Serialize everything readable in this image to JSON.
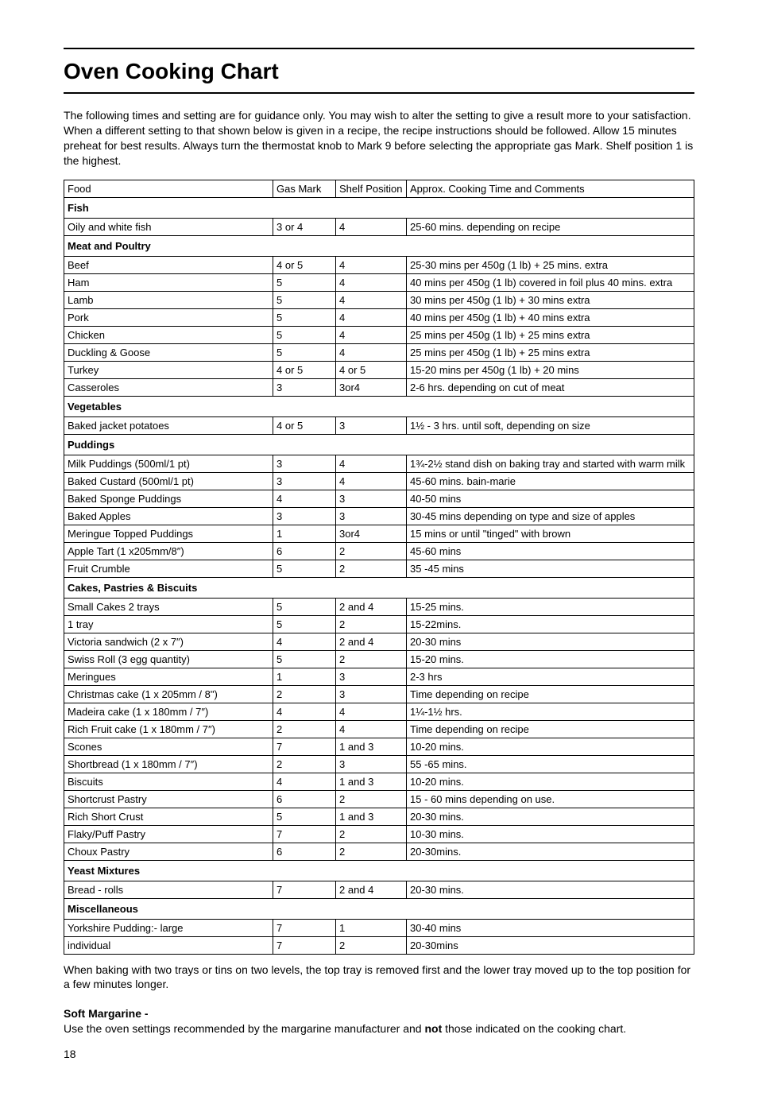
{
  "title": "Oven Cooking Chart",
  "intro": "The following times and setting are for guidance only. You may wish to alter the setting to give a result more to your satisfaction. When a different setting to that shown below is given in a recipe, the recipe instructions should be followed. Allow 15 minutes preheat for best results. Always turn the thermostat knob to Mark 9 before selecting the appropriate gas Mark. Shelf position 1 is the highest.",
  "columns": {
    "food": "Food",
    "gas": "Gas Mark",
    "shelf": "Shelf Position",
    "comments": "Approx. Cooking Time and Comments"
  },
  "sections": [
    {
      "header": "Fish",
      "rows": [
        {
          "food": "Oily and white fish",
          "gas": "3 or 4",
          "shelf": "4",
          "comments": "25-60 mins. depending on recipe"
        }
      ]
    },
    {
      "header": "Meat and Poultry",
      "rows": [
        {
          "food": "Beef",
          "gas": "4 or 5",
          "shelf": "4",
          "comments": "25-30 mins per 450g (1 lb) + 25 mins. extra"
        },
        {
          "food": "Ham",
          "gas": "5",
          "shelf": "4",
          "comments": "40 mins per 450g (1 lb) covered in foil plus 40 mins. extra"
        },
        {
          "food": "Lamb",
          "gas": "5",
          "shelf": "4",
          "comments": "30 mins per 450g (1 lb) + 30 mins extra"
        },
        {
          "food": "Pork",
          "gas": "5",
          "shelf": "4",
          "comments": "40 mins per 450g (1 lb) + 40 mins extra"
        },
        {
          "food": "Chicken",
          "gas": "5",
          "shelf": "4",
          "comments": "25 mins per 450g (1 lb) + 25 mins extra"
        },
        {
          "food": "Duckling & Goose",
          "gas": "5",
          "shelf": "4",
          "comments": "25 mins per 450g (1 lb) + 25 mins extra"
        },
        {
          "food": "Turkey",
          "gas": "4 or 5",
          "shelf": "4 or 5",
          "comments": "15-20 mins per 450g (1 lb) + 20 mins"
        },
        {
          "food": "Casseroles",
          "gas": "3",
          "shelf": "3or4",
          "comments": "2-6 hrs. depending on cut of meat"
        }
      ]
    },
    {
      "header": "Vegetables",
      "rows": [
        {
          "food": "Baked jacket potatoes",
          "gas": "4 or 5",
          "shelf": "3",
          "comments": "1½ - 3 hrs. until soft, depending on size"
        }
      ]
    },
    {
      "header": "Puddings",
      "rows": [
        {
          "food": "Milk Puddings (500ml/1 pt)",
          "gas": "3",
          "shelf": "4",
          "comments": "1¾-2½ stand dish on baking tray and started with warm milk"
        },
        {
          "food": "Baked Custard (500ml/1 pt)",
          "gas": "3",
          "shelf": "4",
          "comments": "45-60 mins. bain-marie"
        },
        {
          "food": "Baked Sponge Puddings",
          "gas": "4",
          "shelf": "3",
          "comments": "40-50 mins"
        },
        {
          "food": "Baked Apples",
          "gas": "3",
          "shelf": "3",
          "comments": "30-45 mins depending on type and size of apples"
        },
        {
          "food": "Meringue Topped Puddings",
          "gas": "1",
          "shelf": "3or4",
          "comments": "15 mins or until \"tinged\" with brown"
        },
        {
          "food": "Apple Tart (1 x205mm/8″)",
          "gas": "6",
          "shelf": "2",
          "comments": "45-60 mins"
        },
        {
          "food": "Fruit Crumble",
          "gas": "5",
          "shelf": "2",
          "comments": "35 -45 mins"
        }
      ]
    },
    {
      "header": "Cakes, Pastries & Biscuits",
      "rows": [
        {
          "food": "Small Cakes 2 trays",
          "gas": "5",
          "shelf": "2 and 4",
          "comments": "15-25 mins."
        },
        {
          "food": "1 tray",
          "gas": "5",
          "shelf": "2",
          "comments": "15-22mins."
        },
        {
          "food": "Victoria sandwich (2 x 7″)",
          "gas": "4",
          "shelf": "2 and 4",
          "comments": "20-30 mins"
        },
        {
          "food": "Swiss Roll (3 egg quantity)",
          "gas": "5",
          "shelf": "2",
          "comments": "15-20 mins."
        },
        {
          "food": "Meringues",
          "gas": "1",
          "shelf": "3",
          "comments": "2-3 hrs"
        },
        {
          "food": "Christmas cake (1 x 205mm / 8\")",
          "gas": "2",
          "shelf": "3",
          "comments": "Time depending on recipe"
        },
        {
          "food": "Madeira cake (1 x 180mm / 7″)",
          "gas": "4",
          "shelf": "4",
          "comments": "1¼-1½ hrs."
        },
        {
          "food": "Rich Fruit cake (1 x 180mm / 7″)",
          "gas": "2",
          "shelf": "4",
          "comments": "Time depending on recipe"
        },
        {
          "food": "Scones",
          "gas": "7",
          "shelf": "1 and 3",
          "comments": "10-20 mins."
        },
        {
          "food": "Shortbread (1 x 180mm / 7″)",
          "gas": "2",
          "shelf": "3",
          "comments": "55 -65 mins."
        },
        {
          "food": "Biscuits",
          "gas": "4",
          "shelf": "1 and 3",
          "comments": "10-20 mins."
        },
        {
          "food": "Shortcrust Pastry",
          "gas": "6",
          "shelf": "2",
          "comments": "15 - 60 mins depending on use."
        },
        {
          "food": "Rich Short Crust",
          "gas": "5",
          "shelf": "1 and 3",
          "comments": "20-30 mins."
        },
        {
          "food": "Flaky/Puff Pastry",
          "gas": "7",
          "shelf": "2",
          "comments": "10-30 mins."
        },
        {
          "food": "Choux Pastry",
          "gas": "6",
          "shelf": "2",
          "comments": "20-30mins."
        }
      ]
    },
    {
      "header": "Yeast Mixtures",
      "rows": [
        {
          "food": "Bread - rolls",
          "gas": "7",
          "shelf": "2 and 4",
          "comments": "20-30 mins."
        }
      ]
    },
    {
      "header": "Miscellaneous",
      "rows": [
        {
          "food": "Yorkshire Pudding:- large",
          "gas": "7",
          "shelf": "1",
          "comments": "30-40 mins"
        },
        {
          "food": "individual",
          "gas": "7",
          "shelf": "2",
          "comments": "20-30mins"
        }
      ]
    }
  ],
  "footerNote": "When baking with two trays or tins on two levels, the top tray is removed first and the lower tray moved up to the top position for a few minutes longer.",
  "softMargarine": {
    "heading": "Soft Margarine -",
    "textPre": "Use the oven settings recommended by the margarine manufacturer and ",
    "bold": "not",
    "textPost": " those indicated on the cooking chart."
  },
  "pageNumber": "18",
  "style": {
    "background": "#ffffff",
    "textColor": "#000000",
    "borderColor": "#000000",
    "titleFontSize": 28,
    "bodyFontSize": 14,
    "tableFontSize": 13,
    "colWidths": {
      "food": 254,
      "gas": 70,
      "shelf": 80
    }
  }
}
